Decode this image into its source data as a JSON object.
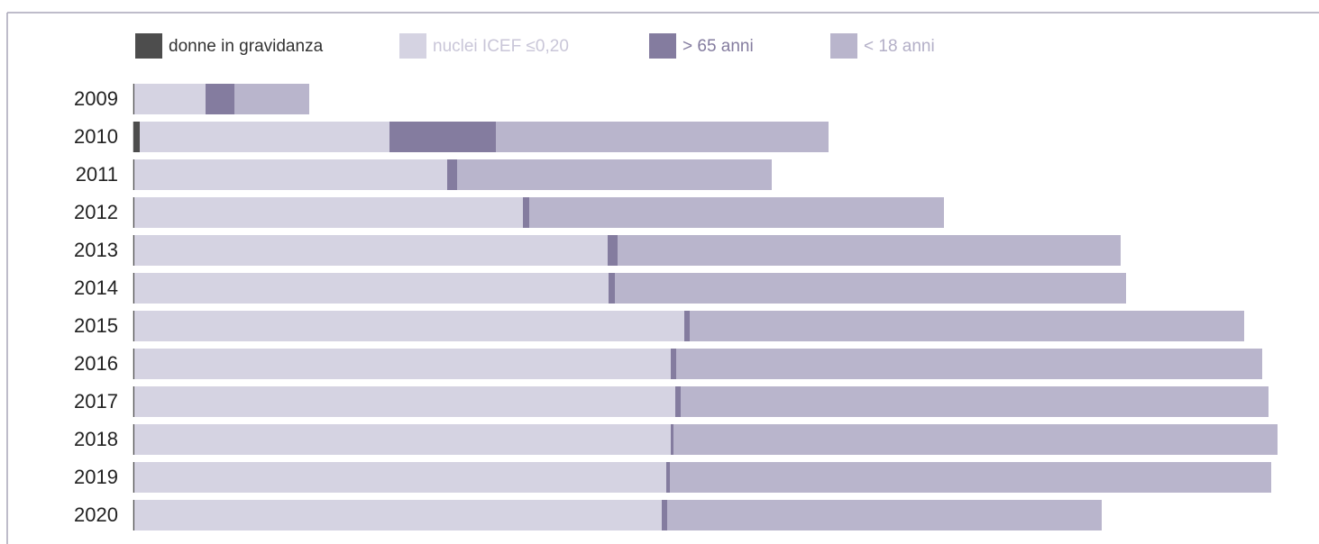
{
  "chart_data": {
    "type": "stacked-bar-horizontal",
    "categories": [
      "2009",
      "2010",
      "2011",
      "2012",
      "2013",
      "2014",
      "2015",
      "2016",
      "2017",
      "2018",
      "2019",
      "2020"
    ],
    "series": [
      {
        "name": "donne in gravidanza",
        "color": "#4d4d4d",
        "values": [
          0,
          6,
          0,
          0,
          0,
          0,
          0,
          0,
          0,
          0,
          0,
          0
        ]
      },
      {
        "name": "nuclei ICEF ≤0,20",
        "color": "#d5d3e2",
        "values": [
          79,
          277,
          347,
          431,
          525,
          526,
          610,
          595,
          600,
          595,
          590,
          585
        ]
      },
      {
        "name": "> 65 anni",
        "color": "#847c9f",
        "values": [
          32,
          118,
          11,
          7,
          11,
          7,
          6,
          6,
          6,
          3,
          4,
          6
        ]
      },
      {
        "name": "< 18 anni",
        "color": "#b9b5cc",
        "values": [
          83,
          369,
          349,
          460,
          558,
          567,
          615,
          650,
          652,
          670,
          667,
          482
        ]
      }
    ],
    "xlim": [
      0,
      1280
    ]
  }
}
